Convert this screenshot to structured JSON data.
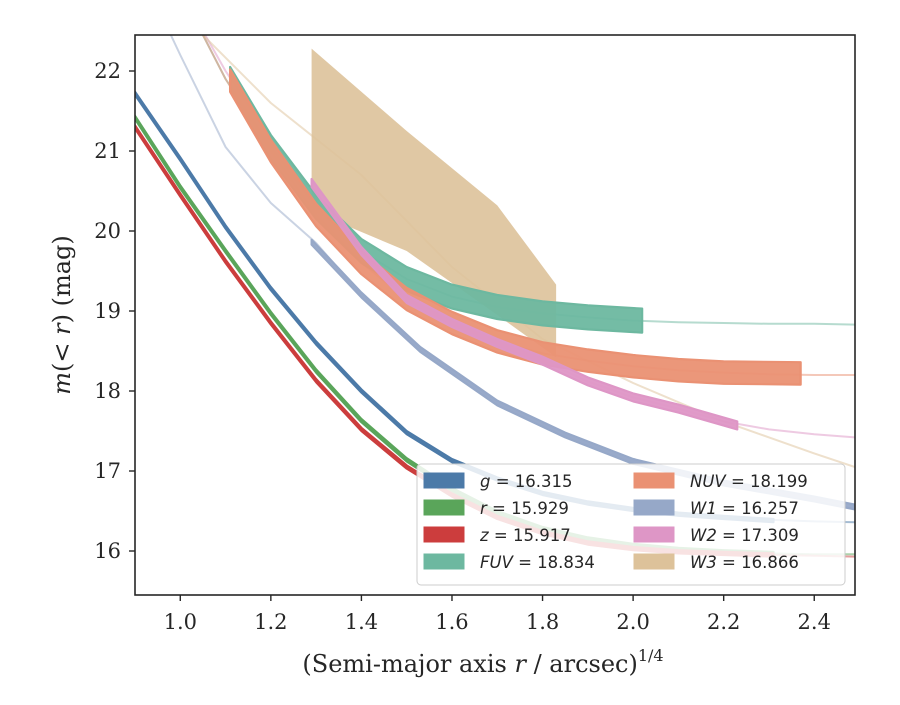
{
  "chart_data": {
    "type": "line",
    "xlabel": "(Semi-major axis r / arcsec)^{1/4}",
    "xlabel_parts": {
      "pre": "(Semi-major axis ",
      "var": "r",
      "mid": " / arcsec)",
      "sup": "1/4"
    },
    "ylabel": "m(< r) (mag)",
    "ylabel_parts": {
      "var1": "m",
      "open": "(< ",
      "var2": "r",
      "close": ")",
      "unit": " (mag)"
    },
    "xlim": [
      0.9,
      2.49
    ],
    "ylim": [
      22.45,
      15.45
    ],
    "y_inverted": true,
    "x_ticks": [
      1.0,
      1.2,
      1.4,
      1.6,
      1.8,
      2.0,
      2.2,
      2.4
    ],
    "x_tick_labels": [
      "1.0",
      "1.2",
      "1.4",
      "1.6",
      "1.8",
      "2.0",
      "2.2",
      "2.4"
    ],
    "y_ticks": [
      16,
      17,
      18,
      19,
      20,
      21,
      22
    ],
    "y_tick_labels": [
      "16",
      "17",
      "18",
      "19",
      "20",
      "21",
      "22"
    ],
    "grid": false,
    "legend_placement": "lower-right",
    "legend_columns": 2,
    "series": [
      {
        "key": "g",
        "name": "g",
        "legend_value": "16.315",
        "color": "#4c7aa8",
        "extrapolated": [
          [
            0.9,
            21.72
          ],
          [
            1.0,
            20.9
          ],
          [
            1.1,
            20.05
          ],
          [
            1.2,
            19.28
          ],
          [
            1.3,
            18.6
          ],
          [
            1.4,
            18.0
          ],
          [
            1.5,
            17.48
          ],
          [
            1.6,
            17.13
          ],
          [
            1.7,
            16.9
          ],
          [
            1.8,
            16.72
          ],
          [
            1.9,
            16.6
          ],
          [
            2.0,
            16.52
          ],
          [
            2.1,
            16.46
          ],
          [
            2.2,
            16.42
          ],
          [
            2.3,
            16.39
          ],
          [
            2.4,
            16.37
          ],
          [
            2.49,
            16.36
          ]
        ],
        "measured": [
          [
            0.9,
            21.72
          ],
          [
            1.0,
            20.9
          ],
          [
            1.1,
            20.05
          ],
          [
            1.2,
            19.28
          ],
          [
            1.3,
            18.6
          ],
          [
            1.4,
            18.0
          ],
          [
            1.5,
            17.48
          ],
          [
            1.6,
            17.13
          ],
          [
            1.7,
            16.9
          ],
          [
            1.8,
            16.72
          ],
          [
            1.9,
            16.6
          ],
          [
            2.0,
            16.52
          ],
          [
            2.1,
            16.46
          ],
          [
            2.2,
            16.42
          ],
          [
            2.31,
            16.38
          ]
        ],
        "band_width": 0.02
      },
      {
        "key": "r",
        "name": "r",
        "legend_value": "15.929",
        "color": "#5aa55a",
        "extrapolated": [
          [
            0.9,
            21.42
          ],
          [
            1.0,
            20.55
          ],
          [
            1.1,
            19.75
          ],
          [
            1.2,
            18.97
          ],
          [
            1.3,
            18.25
          ],
          [
            1.4,
            17.63
          ],
          [
            1.5,
            17.14
          ],
          [
            1.6,
            16.77
          ],
          [
            1.7,
            16.48
          ],
          [
            1.8,
            16.28
          ],
          [
            1.9,
            16.15
          ],
          [
            2.0,
            16.07
          ],
          [
            2.1,
            16.02
          ],
          [
            2.2,
            15.99
          ],
          [
            2.3,
            15.97
          ],
          [
            2.4,
            15.96
          ],
          [
            2.49,
            15.96
          ]
        ],
        "measured": [
          [
            0.9,
            21.42
          ],
          [
            1.0,
            20.55
          ],
          [
            1.1,
            19.75
          ],
          [
            1.2,
            18.97
          ],
          [
            1.3,
            18.25
          ],
          [
            1.4,
            17.63
          ],
          [
            1.5,
            17.14
          ],
          [
            1.6,
            16.77
          ],
          [
            1.7,
            16.48
          ],
          [
            1.8,
            16.28
          ],
          [
            1.9,
            16.15
          ],
          [
            2.0,
            16.07
          ],
          [
            2.1,
            16.02
          ],
          [
            2.2,
            15.99
          ],
          [
            2.31,
            15.97
          ]
        ],
        "band_width": 0.02
      },
      {
        "key": "z",
        "name": "z",
        "legend_value": "15.917",
        "color": "#cc3d3d",
        "extrapolated": [
          [
            0.9,
            21.3
          ],
          [
            1.0,
            20.45
          ],
          [
            1.1,
            19.62
          ],
          [
            1.2,
            18.85
          ],
          [
            1.3,
            18.13
          ],
          [
            1.4,
            17.52
          ],
          [
            1.5,
            17.05
          ],
          [
            1.6,
            16.7
          ],
          [
            1.7,
            16.42
          ],
          [
            1.8,
            16.23
          ],
          [
            1.9,
            16.1
          ],
          [
            2.0,
            16.03
          ],
          [
            2.1,
            15.99
          ],
          [
            2.2,
            15.97
          ],
          [
            2.3,
            15.95
          ],
          [
            2.4,
            15.94
          ],
          [
            2.49,
            15.93
          ]
        ],
        "measured": [
          [
            0.9,
            21.3
          ],
          [
            1.0,
            20.45
          ],
          [
            1.1,
            19.62
          ],
          [
            1.2,
            18.85
          ],
          [
            1.3,
            18.13
          ],
          [
            1.4,
            17.52
          ],
          [
            1.5,
            17.05
          ],
          [
            1.6,
            16.7
          ],
          [
            1.7,
            16.42
          ],
          [
            1.8,
            16.23
          ],
          [
            1.9,
            16.1
          ],
          [
            2.0,
            16.03
          ],
          [
            2.1,
            15.99
          ],
          [
            2.2,
            15.97
          ],
          [
            2.31,
            15.95
          ]
        ],
        "band_width": 0.02
      },
      {
        "key": "FUV",
        "name": "FUV",
        "legend_value": "18.834",
        "color": "#6db8a0",
        "extrapolated": [
          [
            1.0,
            23.0
          ],
          [
            1.1,
            21.9
          ],
          [
            1.2,
            21.05
          ],
          [
            1.3,
            20.3
          ],
          [
            1.4,
            19.75
          ],
          [
            1.5,
            19.4
          ],
          [
            1.6,
            19.18
          ],
          [
            1.7,
            19.05
          ],
          [
            1.8,
            18.97
          ],
          [
            1.9,
            18.92
          ],
          [
            2.0,
            18.88
          ],
          [
            2.1,
            18.86
          ],
          [
            2.2,
            18.85
          ],
          [
            2.3,
            18.84
          ],
          [
            2.4,
            18.84
          ],
          [
            2.49,
            18.83
          ]
        ],
        "measured": [
          [
            1.11,
            21.9
          ],
          [
            1.2,
            21.05
          ],
          [
            1.3,
            20.3
          ],
          [
            1.4,
            19.75
          ],
          [
            1.5,
            19.4
          ],
          [
            1.6,
            19.18
          ],
          [
            1.7,
            19.05
          ],
          [
            1.8,
            18.97
          ],
          [
            1.9,
            18.92
          ],
          [
            2.02,
            18.88
          ]
        ],
        "band_width": 0.15
      },
      {
        "key": "NUV",
        "name": "NUV",
        "legend_value": "18.199",
        "color": "#ea9173",
        "extrapolated": [
          [
            1.0,
            23.0
          ],
          [
            1.1,
            21.9
          ],
          [
            1.2,
            21.0
          ],
          [
            1.3,
            20.2
          ],
          [
            1.4,
            19.6
          ],
          [
            1.5,
            19.15
          ],
          [
            1.6,
            18.85
          ],
          [
            1.7,
            18.62
          ],
          [
            1.8,
            18.47
          ],
          [
            1.9,
            18.38
          ],
          [
            2.0,
            18.31
          ],
          [
            2.1,
            18.26
          ],
          [
            2.2,
            18.23
          ],
          [
            2.3,
            18.21
          ],
          [
            2.4,
            18.2
          ],
          [
            2.49,
            18.2
          ]
        ],
        "measured": [
          [
            1.11,
            21.88
          ],
          [
            1.2,
            21.0
          ],
          [
            1.3,
            20.2
          ],
          [
            1.4,
            19.6
          ],
          [
            1.5,
            19.15
          ],
          [
            1.6,
            18.85
          ],
          [
            1.7,
            18.62
          ],
          [
            1.8,
            18.47
          ],
          [
            1.9,
            18.38
          ],
          [
            2.0,
            18.31
          ],
          [
            2.1,
            18.26
          ],
          [
            2.2,
            18.23
          ],
          [
            2.37,
            18.22
          ]
        ],
        "band_width": 0.14
      },
      {
        "key": "W1",
        "name": "W1",
        "legend_value": "16.257",
        "color": "#96a8c8",
        "extrapolated": [
          [
            0.95,
            22.8
          ],
          [
            1.0,
            22.2
          ],
          [
            1.1,
            21.05
          ],
          [
            1.2,
            20.35
          ],
          [
            1.3,
            19.85
          ],
          [
            1.4,
            19.2
          ],
          [
            1.53,
            18.52
          ],
          [
            1.7,
            17.85
          ],
          [
            1.85,
            17.45
          ],
          [
            2.0,
            17.12
          ],
          [
            2.2,
            16.85
          ],
          [
            2.4,
            16.65
          ],
          [
            2.49,
            16.58
          ]
        ],
        "measured": [
          [
            1.29,
            19.86
          ],
          [
            1.4,
            19.2
          ],
          [
            1.53,
            18.52
          ],
          [
            1.7,
            17.85
          ],
          [
            1.85,
            17.45
          ],
          [
            2.0,
            17.12
          ],
          [
            2.2,
            16.85
          ],
          [
            2.4,
            16.65
          ],
          [
            2.49,
            16.55
          ]
        ],
        "band_width": 0.03
      },
      {
        "key": "W2",
        "name": "W2",
        "legend_value": "17.309",
        "color": "#de96c6",
        "extrapolated": [
          [
            1.0,
            23.0
          ],
          [
            1.1,
            22.0
          ],
          [
            1.2,
            21.15
          ],
          [
            1.3,
            20.35
          ],
          [
            1.4,
            19.75
          ],
          [
            1.5,
            19.15
          ],
          [
            1.6,
            18.85
          ],
          [
            1.7,
            18.6
          ],
          [
            1.8,
            18.38
          ],
          [
            1.9,
            18.12
          ],
          [
            2.0,
            17.92
          ],
          [
            2.1,
            17.78
          ],
          [
            2.2,
            17.62
          ],
          [
            2.3,
            17.52
          ],
          [
            2.4,
            17.46
          ],
          [
            2.49,
            17.42
          ]
        ],
        "measured": [
          [
            1.29,
            20.6
          ],
          [
            1.4,
            19.75
          ],
          [
            1.5,
            19.15
          ],
          [
            1.6,
            18.85
          ],
          [
            1.7,
            18.6
          ],
          [
            1.8,
            18.38
          ],
          [
            1.9,
            18.12
          ],
          [
            2.0,
            17.92
          ],
          [
            2.1,
            17.78
          ],
          [
            2.23,
            17.57
          ]
        ],
        "band_width": 0.05
      },
      {
        "key": "W3",
        "name": "W3",
        "legend_value": "16.866",
        "color": "#ddc29a",
        "extrapolated": [
          [
            1.05,
            22.45
          ],
          [
            1.2,
            21.6
          ],
          [
            1.4,
            20.7
          ],
          [
            1.6,
            19.55
          ],
          [
            1.8,
            18.65
          ],
          [
            2.0,
            18.1
          ],
          [
            2.2,
            17.62
          ],
          [
            2.4,
            17.22
          ],
          [
            2.49,
            17.05
          ]
        ],
        "band_upper": [
          [
            1.29,
            20.25
          ],
          [
            1.5,
            19.75
          ],
          [
            1.7,
            18.95
          ],
          [
            1.83,
            18.42
          ]
        ],
        "band_lower": [
          [
            1.29,
            22.28
          ],
          [
            1.5,
            21.25
          ],
          [
            1.7,
            20.32
          ],
          [
            1.83,
            19.33
          ]
        ]
      }
    ],
    "legend_order": [
      "g",
      "r",
      "z",
      "FUV",
      "NUV",
      "W1",
      "W2",
      "W3"
    ]
  }
}
